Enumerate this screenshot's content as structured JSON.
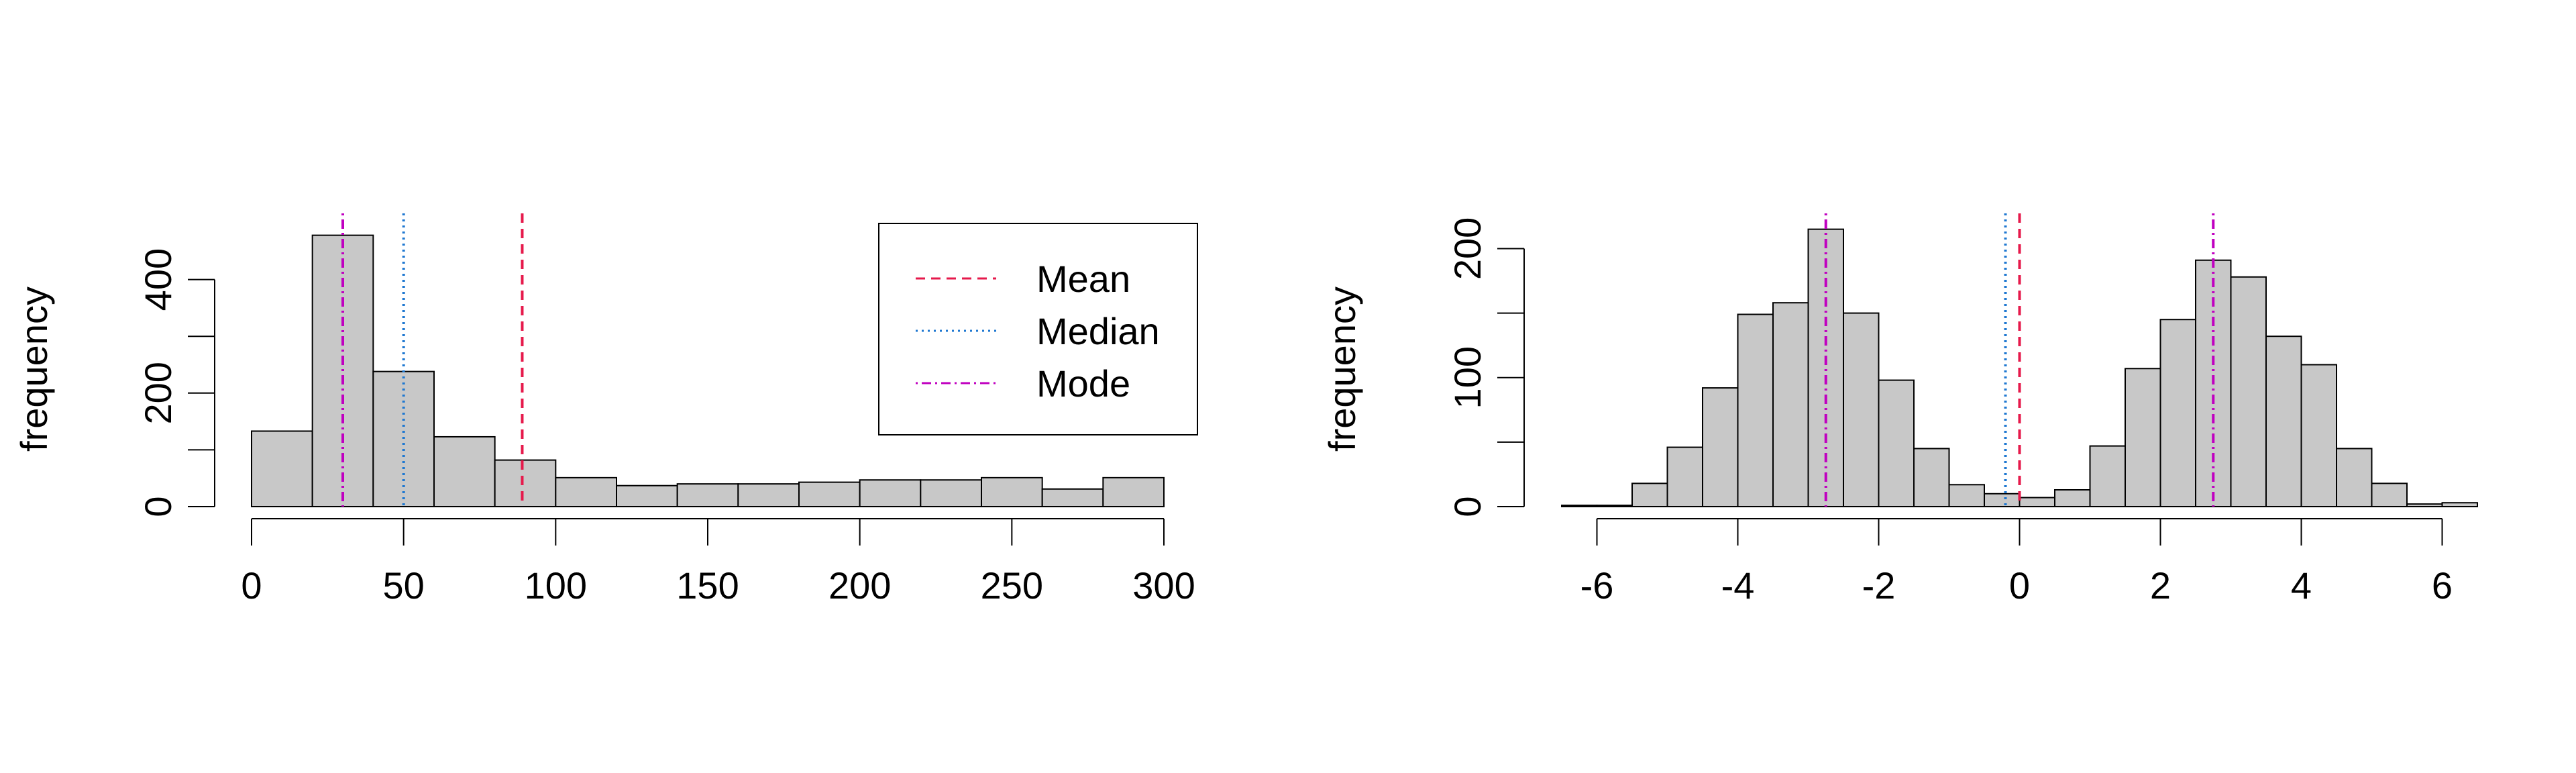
{
  "chart_data": [
    {
      "type": "bar",
      "title": "",
      "xlabel": "",
      "ylabel": "frequency",
      "xlim": [
        0,
        300
      ],
      "ylim": [
        0,
        500
      ],
      "x_ticks": [
        0,
        50,
        100,
        150,
        200,
        250,
        300
      ],
      "y_ticks": [
        0,
        200,
        400
      ],
      "y_minor_ticks": [
        100,
        300
      ],
      "bin_edges": [
        0,
        20,
        40,
        60,
        80,
        100,
        120,
        140,
        160,
        180,
        200,
        220,
        240,
        260,
        280,
        300
      ],
      "values": [
        133,
        478,
        238,
        123,
        82,
        51,
        37,
        40,
        40,
        43,
        47,
        47,
        51,
        31,
        51
      ],
      "reference_lines": [
        {
          "name": "Mean",
          "value": 89,
          "color": "#e6194b",
          "style": "dashed"
        },
        {
          "name": "Median",
          "value": 50,
          "color": "#1f78d1",
          "style": "dotted"
        },
        {
          "name": "Mode",
          "value": 30,
          "color": "#c000c0",
          "style": "dotdash"
        }
      ],
      "legend": {
        "position": "top-right",
        "entries": [
          "Mean",
          "Median",
          "Mode"
        ]
      },
      "grid": false
    },
    {
      "type": "bar",
      "title": "",
      "xlabel": "",
      "ylabel": "frequency",
      "xlim": [
        -6.5,
        6.5
      ],
      "ylim": [
        0,
        220
      ],
      "x_ticks": [
        -6,
        -4,
        -2,
        0,
        2,
        4,
        6
      ],
      "y_ticks": [
        0,
        100,
        200
      ],
      "y_minor_ticks": [
        50,
        150
      ],
      "bin_edges": [
        -6.5,
        -6,
        -5.5,
        -5,
        -4.5,
        -4,
        -3.5,
        -3,
        -2.5,
        -2,
        -1.5,
        -1,
        -0.5,
        0,
        0.5,
        1,
        1.5,
        2,
        2.5,
        3,
        3.5,
        4,
        4.5,
        5,
        5.5,
        6,
        6.5
      ],
      "values": [
        1,
        1,
        18,
        46,
        92,
        149,
        158,
        215,
        150,
        98,
        45,
        17,
        10,
        7,
        13,
        47,
        107,
        145,
        191,
        178,
        132,
        110,
        45,
        18,
        2,
        3
      ],
      "reference_lines": [
        {
          "name": "Mean",
          "value": 0,
          "color": "#e6194b",
          "style": "dashed"
        },
        {
          "name": "Median",
          "value": -0.2,
          "color": "#1f78d1",
          "style": "dotted"
        },
        {
          "name": "Mode",
          "value": -2.75,
          "color": "#c000c0",
          "style": "dotdash"
        },
        {
          "name": "Mode",
          "value": 2.75,
          "color": "#c000c0",
          "style": "dotdash"
        }
      ],
      "grid": false
    }
  ]
}
